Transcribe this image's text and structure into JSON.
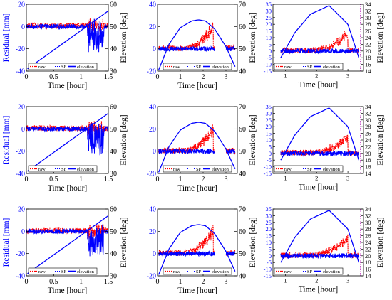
{
  "colors": {
    "raw": "#ff0000",
    "sf": "#0000ff",
    "elevation": "#0000ff",
    "axis": "#000000",
    "left_axis": "#0000ff"
  },
  "legend": {
    "raw": "raw",
    "sf": "SF",
    "elevation": "elevation"
  },
  "labels": {
    "residual": "Residual [mm]",
    "elevation": "Elevation [deg]",
    "time": "Time [hour]"
  },
  "chart_data": [
    {
      "type": "line",
      "row": 1,
      "col": 1,
      "xlim": [
        0,
        1.5
      ],
      "xticks": [
        0,
        0.5,
        1,
        1.5
      ],
      "ylim_left": [
        -40,
        20
      ],
      "yticks_left": [
        -40,
        -20,
        0,
        20
      ],
      "ylim_right": [
        30,
        60
      ],
      "yticks_right": [
        30,
        40,
        50,
        60
      ],
      "xlabel": "Time [hour]",
      "ylabel_left": "Residual [mm]",
      "ylabel_right": "Elevation [deg]",
      "legend_position": "bottom-left",
      "noise_start": 0.0,
      "noise_end": 1.5,
      "spike": 1.2,
      "elevation": {
        "x": [
          0.02,
          1.5
        ],
        "y": [
          31,
          57
        ]
      }
    },
    {
      "type": "line",
      "row": 1,
      "col": 2,
      "xlim": [
        0,
        3.5
      ],
      "xticks": [
        0,
        1,
        2,
        3
      ],
      "ylim_left": [
        -20,
        40
      ],
      "yticks_left": [
        -20,
        0,
        20,
        40
      ],
      "ylim_right": [
        40,
        70
      ],
      "yticks_right": [
        40,
        50,
        60,
        70
      ],
      "xlabel": "Time [hour]",
      "ylabel_left": "",
      "ylabel_right": "Elevation [deg]",
      "legend_position": "bottom-center",
      "noise_start": 0.05,
      "noise_end": 3.4,
      "gap": [
        2.5,
        3.0
      ],
      "ramp": [
        1.2,
        2.45,
        20
      ],
      "elevation": {
        "x": [
          0.05,
          0.5,
          1.0,
          1.5,
          1.8,
          2.1,
          2.5,
          3.0,
          3.4
        ],
        "y": [
          40.5,
          52,
          59.5,
          62.5,
          63,
          62.5,
          59,
          51,
          42
        ]
      }
    },
    {
      "type": "line",
      "row": 1,
      "col": 3,
      "xlim": [
        0.6,
        3.5
      ],
      "xticks": [
        1,
        2,
        3
      ],
      "ylim_left": [
        -15,
        35
      ],
      "yticks_left": [
        -15,
        -10,
        -5,
        0,
        5,
        10,
        15,
        20,
        25,
        30,
        35
      ],
      "ylim_right": [
        14,
        34
      ],
      "yticks_right": [
        14,
        16,
        18,
        20,
        22,
        24,
        26,
        28,
        30,
        32,
        34
      ],
      "xlabel": "Time [hour]",
      "ylabel_left": "",
      "ylabel_right": "Elevation [deg]",
      "legend_position": "bottom-left",
      "noise_start": 0.85,
      "noise_end": 3.35,
      "ramp": [
        1.8,
        3.0,
        12
      ],
      "elevation": {
        "x": [
          0.85,
          1.3,
          1.8,
          2.4,
          3.0,
          3.35
        ],
        "y": [
          18,
          25.5,
          31,
          33.6,
          28,
          18
        ]
      }
    },
    {
      "type": "line",
      "row": 2,
      "col": 1,
      "xlim": [
        0,
        1.5
      ],
      "xticks": [
        0,
        0.5,
        1,
        1.5
      ],
      "ylim_left": [
        -40,
        20
      ],
      "yticks_left": [
        -40,
        -20,
        0,
        20
      ],
      "ylim_right": [
        30,
        60
      ],
      "yticks_right": [
        30,
        40,
        50,
        60
      ],
      "xlabel": "Time [hour]",
      "ylabel_left": "Residual [mm]",
      "ylabel_right": "Elevation [deg]",
      "legend_position": "bottom-left",
      "noise_start": 0.0,
      "noise_end": 1.5,
      "spike": 1.2,
      "elevation": {
        "x": [
          0.02,
          1.5
        ],
        "y": [
          31,
          57
        ]
      }
    },
    {
      "type": "line",
      "row": 2,
      "col": 2,
      "xlim": [
        0,
        3.5
      ],
      "xticks": [
        0,
        1,
        2,
        3
      ],
      "ylim_left": [
        -20,
        40
      ],
      "yticks_left": [
        -20,
        0,
        20,
        40
      ],
      "ylim_right": [
        40,
        70
      ],
      "yticks_right": [
        40,
        50,
        60,
        70
      ],
      "xlabel": "Time [hour]",
      "ylabel_left": "",
      "ylabel_right": "Elevation [deg]",
      "legend_position": "bottom-center",
      "noise_start": 0.05,
      "noise_end": 3.4,
      "gap": [
        2.5,
        3.0
      ],
      "ramp": [
        1.2,
        2.45,
        20
      ],
      "elevation": {
        "x": [
          0.05,
          0.5,
          1.0,
          1.5,
          1.8,
          2.1,
          2.5,
          3.0,
          3.4
        ],
        "y": [
          40.5,
          52,
          59.5,
          62.5,
          63,
          62.5,
          59,
          51,
          42
        ]
      }
    },
    {
      "type": "line",
      "row": 2,
      "col": 3,
      "xlim": [
        0.6,
        3.5
      ],
      "xticks": [
        1,
        2,
        3
      ],
      "ylim_left": [
        -15,
        35
      ],
      "yticks_left": [
        -15,
        -10,
        -5,
        0,
        5,
        10,
        15,
        20,
        25,
        30,
        35
      ],
      "ylim_right": [
        14,
        34
      ],
      "yticks_right": [
        14,
        16,
        18,
        20,
        22,
        24,
        26,
        28,
        30,
        32,
        34
      ],
      "xlabel": "Time [hour]",
      "ylabel_left": "",
      "ylabel_right": "Elevation [deg]",
      "legend_position": "bottom-left",
      "noise_start": 0.85,
      "noise_end": 3.35,
      "ramp": [
        1.8,
        3.0,
        12
      ],
      "elevation": {
        "x": [
          0.85,
          1.3,
          1.8,
          2.4,
          3.0,
          3.35
        ],
        "y": [
          18,
          25.5,
          31,
          33.6,
          28,
          18
        ]
      }
    },
    {
      "type": "line",
      "row": 3,
      "col": 1,
      "xlim": [
        0,
        1.5
      ],
      "xticks": [
        0,
        0.5,
        1,
        1.5
      ],
      "ylim_left": [
        -40,
        20
      ],
      "yticks_left": [
        -40,
        -20,
        0,
        20
      ],
      "ylim_right": [
        30,
        60
      ],
      "yticks_right": [
        30,
        40,
        50,
        60
      ],
      "xlabel": "Time [hour]",
      "ylabel_left": "Residual [mm]",
      "ylabel_right": "Elevation [deg]",
      "legend_position": "bottom-left",
      "noise_start": 0.0,
      "noise_end": 1.5,
      "spike": 1.2,
      "elevation": {
        "x": [
          0.02,
          1.5
        ],
        "y": [
          31,
          57
        ]
      }
    },
    {
      "type": "line",
      "row": 3,
      "col": 2,
      "xlim": [
        0,
        3.5
      ],
      "xticks": [
        0,
        1,
        2,
        3
      ],
      "ylim_left": [
        -20,
        40
      ],
      "yticks_left": [
        -20,
        0,
        20,
        40
      ],
      "ylim_right": [
        40,
        70
      ],
      "yticks_right": [
        40,
        50,
        60,
        70
      ],
      "xlabel": "Time [hour]",
      "ylabel_left": "",
      "ylabel_right": "Elevation [deg]",
      "legend_position": "bottom-center",
      "noise_start": 0.05,
      "noise_end": 3.4,
      "gap": [
        2.5,
        3.0
      ],
      "ramp": [
        1.2,
        2.45,
        20
      ],
      "elevation": {
        "x": [
          0.05,
          0.5,
          1.0,
          1.5,
          1.8,
          2.1,
          2.5,
          3.0,
          3.4
        ],
        "y": [
          40.5,
          52,
          59.5,
          62.5,
          63,
          62.5,
          59,
          51,
          42
        ]
      }
    },
    {
      "type": "line",
      "row": 3,
      "col": 3,
      "xlim": [
        0.6,
        3.5
      ],
      "xticks": [
        1,
        2,
        3
      ],
      "ylim_left": [
        -15,
        35
      ],
      "yticks_left": [
        -15,
        -10,
        -5,
        0,
        5,
        10,
        15,
        20,
        25,
        30,
        35
      ],
      "ylim_right": [
        14,
        34
      ],
      "yticks_right": [
        14,
        16,
        18,
        20,
        22,
        24,
        26,
        28,
        30,
        32,
        34
      ],
      "xlabel": "Time [hour]",
      "ylabel_left": "",
      "ylabel_right": "Elevation [deg]",
      "legend_position": "bottom-left",
      "noise_start": 0.85,
      "noise_end": 3.35,
      "ramp": [
        1.8,
        3.0,
        12
      ],
      "elevation": {
        "x": [
          0.85,
          1.3,
          1.8,
          2.4,
          3.0,
          3.35
        ],
        "y": [
          18,
          25.5,
          31,
          33.6,
          28,
          18
        ]
      }
    }
  ]
}
